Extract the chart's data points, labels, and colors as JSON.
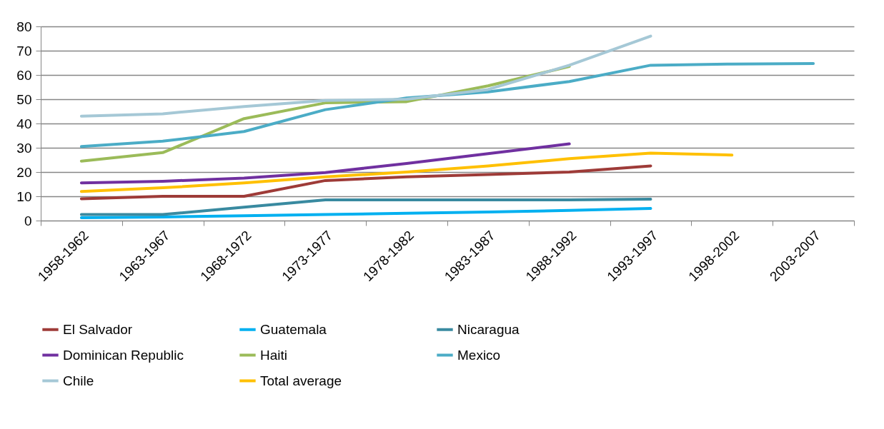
{
  "chart_data": {
    "type": "line",
    "categories": [
      "1958-1962",
      "1963-1967",
      "1968-1972",
      "1973-1977",
      "1978-1982",
      "1983-1987",
      "1988-1992",
      "1993-1997",
      "1998-2002",
      "2003-2007"
    ],
    "series": [
      {
        "name": "El Salvador",
        "color": "#9e3b38",
        "values": [
          9,
          10,
          10,
          16.5,
          18,
          19,
          20,
          22.5,
          null,
          null
        ]
      },
      {
        "name": "Guatemala",
        "color": "#00b0f0",
        "values": [
          1.2,
          1.5,
          2,
          2.5,
          3,
          3.5,
          4.2,
          5,
          null,
          null
        ]
      },
      {
        "name": "Nicaragua",
        "color": "#398aa0",
        "values": [
          2.5,
          2.5,
          5.5,
          8.5,
          8.5,
          8.5,
          8.5,
          8.8,
          null,
          null
        ]
      },
      {
        "name": "Dominican Republic",
        "color": "#7030a0",
        "values": [
          15.5,
          16.2,
          17.5,
          19.8,
          23.5,
          27.6,
          31.6,
          null,
          null,
          null
        ]
      },
      {
        "name": "Haiti",
        "color": "#9bbb59",
        "values": [
          24.5,
          28,
          42,
          48.5,
          49,
          55.5,
          63.5,
          null,
          null,
          null
        ]
      },
      {
        "name": "Mexico",
        "color": "#4bacc6",
        "values": [
          30.5,
          32.7,
          36.7,
          45.7,
          50.5,
          53,
          57.3,
          64,
          64.5,
          64.7
        ]
      },
      {
        "name": "Chile",
        "color": "#a5c8d6",
        "values": [
          43,
          44,
          47,
          49.5,
          50,
          54,
          64,
          76,
          null,
          null
        ]
      },
      {
        "name": "Total average",
        "color": "#ffc000",
        "values": [
          12,
          13.5,
          15.5,
          18,
          20,
          22.5,
          25.5,
          27.8,
          27,
          null
        ]
      }
    ],
    "ylim": [
      0,
      80
    ],
    "yticks": [
      0,
      10,
      20,
      30,
      40,
      50,
      60,
      70,
      80
    ],
    "grid": "y",
    "legend": "bottom",
    "marker": "none",
    "line_style": "solid"
  }
}
